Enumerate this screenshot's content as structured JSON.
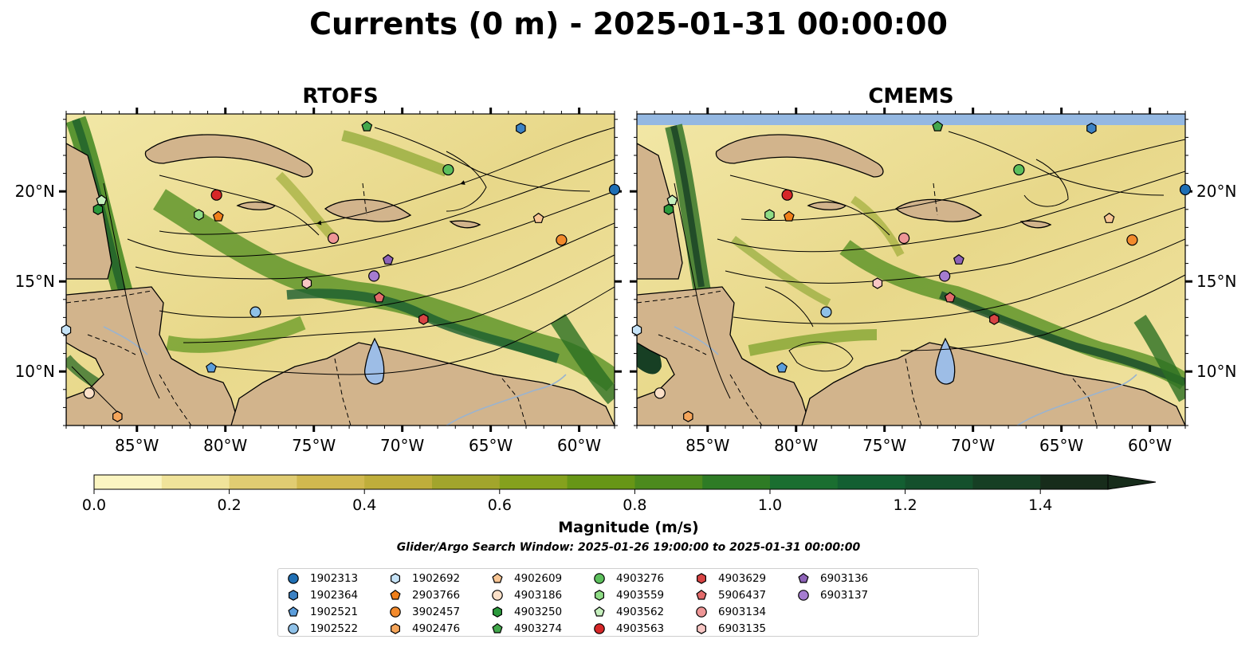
{
  "title": "Currents (0 m) - 2025-01-31 00:00:00",
  "panels": [
    {
      "title": "RTOFS"
    },
    {
      "title": "CMEMS"
    }
  ],
  "map_extent": {
    "lon": [
      -89,
      -58
    ],
    "lat": [
      7,
      24.3
    ]
  },
  "lon_ticks": [
    "85°W",
    "80°W",
    "75°W",
    "70°W",
    "65°W",
    "60°W"
  ],
  "lon_values": [
    -85,
    -80,
    -75,
    -70,
    -65,
    -60
  ],
  "lat_ticks": [
    "10°N",
    "15°N",
    "20°N"
  ],
  "lat_values": [
    10,
    15,
    20
  ],
  "colorbar": {
    "label": "Magnitude (m/s)",
    "ticks": [
      "0.0",
      "0.2",
      "0.4",
      "0.6",
      "0.8",
      "1.0",
      "1.2",
      "1.4"
    ],
    "tick_values": [
      0,
      0.2,
      0.4,
      0.6,
      0.8,
      1.0,
      1.2,
      1.4
    ],
    "range": [
      0,
      1.5
    ],
    "colors": [
      "#fbf5c1",
      "#f0e39a",
      "#e0cc72",
      "#d1b94f",
      "#bfae3b",
      "#a2a52c",
      "#85a11d",
      "#679616",
      "#4c8a1d",
      "#2e7b25",
      "#1a6e30",
      "#135f32",
      "#14502c",
      "#163f24",
      "#172c1b"
    ],
    "extend": "max"
  },
  "search_window": "Glider/Argo Search Window: 2025-01-26 19:00:00 to 2025-01-31 00:00:00",
  "legend": [
    {
      "id": "1902313",
      "marker": "circle",
      "color": "#1f6fb4"
    },
    {
      "id": "1902364",
      "marker": "hexagon",
      "color": "#3c82c4"
    },
    {
      "id": "1902521",
      "marker": "pentagon",
      "color": "#5b9ddb"
    },
    {
      "id": "1902522",
      "marker": "circle",
      "color": "#8fc1e8"
    },
    {
      "id": "1902692",
      "marker": "hexagon",
      "color": "#c6e3f7"
    },
    {
      "id": "2903766",
      "marker": "pentagon",
      "color": "#f07f1a"
    },
    {
      "id": "3902457",
      "marker": "circle",
      "color": "#f28a2c"
    },
    {
      "id": "4902476",
      "marker": "hexagon",
      "color": "#f5a55a"
    },
    {
      "id": "4902609",
      "marker": "pentagon",
      "color": "#f8c594"
    },
    {
      "id": "4903186",
      "marker": "circle",
      "color": "#fbe0c8"
    },
    {
      "id": "4903250",
      "marker": "hexagon",
      "color": "#2b9a3c"
    },
    {
      "id": "4903274",
      "marker": "pentagon",
      "color": "#43a84c"
    },
    {
      "id": "4903276",
      "marker": "circle",
      "color": "#5cbf5c"
    },
    {
      "id": "4903559",
      "marker": "hexagon",
      "color": "#8fdc86"
    },
    {
      "id": "4903562",
      "marker": "pentagon",
      "color": "#c5efbd"
    },
    {
      "id": "4903563",
      "marker": "circle",
      "color": "#d62728"
    },
    {
      "id": "4903629",
      "marker": "hexagon",
      "color": "#d84444"
    },
    {
      "id": "5906437",
      "marker": "pentagon",
      "color": "#e36b6b"
    },
    {
      "id": "6903134",
      "marker": "circle",
      "color": "#ee9696"
    },
    {
      "id": "6903135",
      "marker": "hexagon",
      "color": "#f7c6c4"
    },
    {
      "id": "6903136",
      "marker": "pentagon",
      "color": "#8e63b8"
    },
    {
      "id": "6903137",
      "marker": "circle",
      "color": "#a57cd0"
    }
  ],
  "floats": [
    {
      "id": "1902313",
      "lon": -58.0,
      "lat": 20.1
    },
    {
      "id": "1902364",
      "lon": -63.3,
      "lat": 23.5
    },
    {
      "id": "1902521",
      "lon": -80.8,
      "lat": 10.2
    },
    {
      "id": "1902522",
      "lon": -78.3,
      "lat": 13.3
    },
    {
      "id": "1902692",
      "lon": -89.0,
      "lat": 12.3
    },
    {
      "id": "2903766",
      "lon": -80.4,
      "lat": 18.6
    },
    {
      "id": "3902457",
      "lon": -61.0,
      "lat": 17.3
    },
    {
      "id": "4902476",
      "lon": -86.1,
      "lat": 7.5
    },
    {
      "id": "4902609",
      "lon": -62.3,
      "lat": 18.5
    },
    {
      "id": "4903186",
      "lon": -87.7,
      "lat": 8.8
    },
    {
      "id": "4903250",
      "lon": -87.2,
      "lat": 19.0
    },
    {
      "id": "4903274",
      "lon": -72.0,
      "lat": 23.6
    },
    {
      "id": "4903276",
      "lon": -67.4,
      "lat": 21.2
    },
    {
      "id": "4903559",
      "lon": -81.5,
      "lat": 18.7
    },
    {
      "id": "4903562",
      "lon": -87.0,
      "lat": 19.5
    },
    {
      "id": "4903563",
      "lon": -80.5,
      "lat": 19.8
    },
    {
      "id": "4903629",
      "lon": -68.8,
      "lat": 12.9
    },
    {
      "id": "5906437",
      "lon": -71.3,
      "lat": 14.1
    },
    {
      "id": "6903134",
      "lon": -73.9,
      "lat": 17.4
    },
    {
      "id": "6903135",
      "lon": -75.4,
      "lat": 14.9
    },
    {
      "id": "6903136",
      "lon": -70.8,
      "lat": 16.2
    },
    {
      "id": "6903137",
      "lon": -71.6,
      "lat": 15.3
    }
  ]
}
